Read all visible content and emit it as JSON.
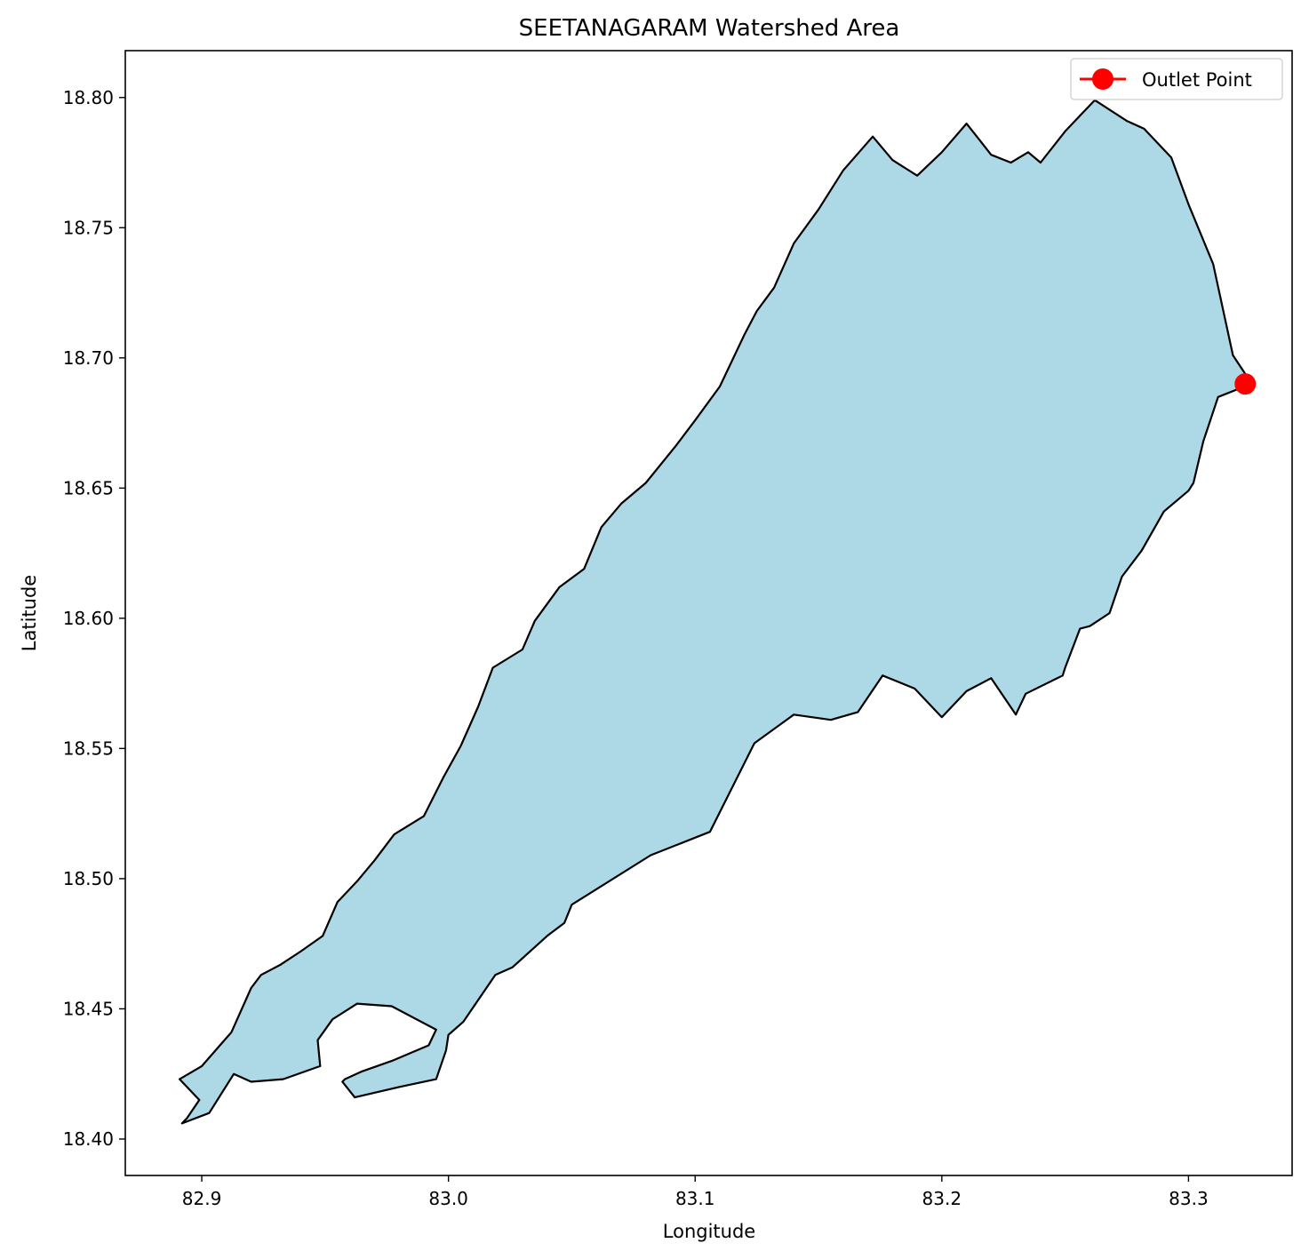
{
  "chart_data": {
    "type": "area",
    "title": "SEETANAGARAM Watershed Area",
    "xlabel": "Longitude",
    "ylabel": "Latitude",
    "xlim": [
      82.869,
      83.342
    ],
    "ylim": [
      18.386,
      18.818
    ],
    "x_ticks": [
      82.9,
      83.0,
      83.1,
      83.2,
      83.3
    ],
    "x_tick_labels": [
      "82.9",
      "83.0",
      "83.1",
      "83.2",
      "83.3"
    ],
    "y_ticks": [
      18.4,
      18.45,
      18.5,
      18.55,
      18.6,
      18.65,
      18.7,
      18.75,
      18.8
    ],
    "y_tick_labels": [
      "18.40",
      "18.45",
      "18.50",
      "18.55",
      "18.60",
      "18.65",
      "18.70",
      "18.75",
      "18.80"
    ],
    "grid": false,
    "legend_position": "upper right",
    "colors": {
      "watershed_fill": "#add8e6",
      "watershed_edge": "#000000",
      "outlet": "#ff0000"
    },
    "watershed_boundary": {
      "lon": [
        82.891,
        82.9,
        82.912,
        82.92,
        82.924,
        82.932,
        82.94,
        82.949,
        82.955,
        82.963,
        82.97,
        82.978,
        82.99,
        82.998,
        83.005,
        83.012,
        83.018,
        83.03,
        83.035,
        83.045,
        83.055,
        83.062,
        83.07,
        83.08,
        83.092,
        83.1,
        83.11,
        83.12,
        83.125,
        83.132,
        83.14,
        83.15,
        83.16,
        83.172,
        83.18,
        83.19,
        83.2,
        83.21,
        83.215,
        83.22,
        83.228,
        83.235,
        83.24,
        83.25,
        83.262,
        83.275,
        83.282,
        83.293,
        83.3,
        83.31,
        83.318,
        83.325,
        83.32,
        83.312,
        83.306,
        83.302,
        83.3,
        83.29,
        83.281,
        83.273,
        83.268,
        83.26,
        83.256,
        83.25,
        83.249,
        83.234,
        83.23,
        83.22,
        83.21,
        83.2,
        83.189,
        83.176,
        83.166,
        83.155,
        83.14,
        83.124,
        83.106,
        83.082,
        83.05,
        83.047,
        83.04,
        83.026,
        83.019,
        83.006,
        83.0,
        82.999,
        82.995,
        82.98,
        82.962,
        82.957,
        82.958,
        82.965,
        82.977,
        82.992,
        82.995,
        82.977,
        82.963,
        82.953,
        82.947,
        82.948,
        82.933,
        82.92,
        82.913,
        82.903,
        82.892,
        82.894,
        82.899,
        82.891
      ],
      "lat": [
        18.423,
        18.428,
        18.441,
        18.458,
        18.463,
        18.467,
        18.472,
        18.478,
        18.491,
        18.499,
        18.507,
        18.517,
        18.524,
        18.539,
        18.551,
        18.566,
        18.581,
        18.588,
        18.599,
        18.612,
        18.619,
        18.635,
        18.644,
        18.652,
        18.666,
        18.676,
        18.689,
        18.709,
        18.718,
        18.727,
        18.744,
        18.757,
        18.772,
        18.785,
        18.776,
        18.77,
        18.779,
        18.79,
        18.784,
        18.778,
        18.775,
        18.779,
        18.775,
        18.787,
        18.799,
        18.791,
        18.788,
        18.777,
        18.759,
        18.736,
        18.701,
        18.691,
        18.688,
        18.685,
        18.668,
        18.652,
        18.649,
        18.641,
        18.626,
        18.616,
        18.602,
        18.597,
        18.596,
        18.581,
        18.578,
        18.571,
        18.563,
        18.577,
        18.572,
        18.562,
        18.573,
        18.578,
        18.564,
        18.561,
        18.563,
        18.552,
        18.518,
        18.509,
        18.49,
        18.483,
        18.478,
        18.466,
        18.463,
        18.445,
        18.44,
        18.434,
        18.423,
        18.42,
        18.416,
        18.422,
        18.423,
        18.426,
        18.43,
        18.436,
        18.442,
        18.451,
        18.452,
        18.446,
        18.438,
        18.428,
        18.423,
        18.422,
        18.425,
        18.41,
        18.406,
        18.408,
        18.415,
        18.423
      ]
    },
    "series": [
      {
        "name": "Outlet Point",
        "x": [
          83.323
        ],
        "y": [
          18.69
        ]
      }
    ]
  }
}
